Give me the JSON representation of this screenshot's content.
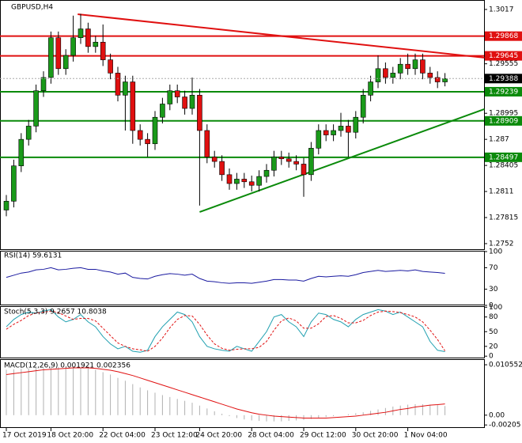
{
  "chart_data": {
    "type": "candlestick",
    "title": "GBPUSD,H4",
    "up_color": "#1a9a1a",
    "down_color": "#e01010",
    "categories": [
      "17 Oct 2019",
      null,
      null,
      null,
      null,
      null,
      "18 Oct 20:00",
      null,
      null,
      null,
      null,
      null,
      null,
      "22 Oct 04:00",
      null,
      null,
      null,
      null,
      null,
      null,
      "23 Oct 12:00",
      null,
      null,
      null,
      null,
      null,
      "24 Oct 20:00",
      null,
      null,
      null,
      null,
      null,
      null,
      "28 Oct 04:00",
      null,
      null,
      null,
      null,
      null,
      null,
      "29 Oct 12:00",
      null,
      null,
      null,
      null,
      null,
      null,
      "30 Oct 20:00",
      null,
      null,
      null,
      null,
      null,
      null,
      "1 Nov 04:00",
      null,
      null,
      null,
      null,
      null
    ],
    "candles": [
      [
        1.279,
        1.2807,
        1.2783,
        1.28
      ],
      [
        1.28,
        1.2847,
        1.2793,
        1.284
      ],
      [
        1.284,
        1.2877,
        1.2833,
        1.287
      ],
      [
        1.287,
        1.2892,
        1.2863,
        1.2885
      ],
      [
        1.2885,
        1.2932,
        1.2878,
        1.2925
      ],
      [
        1.2925,
        1.2947,
        1.2918,
        1.294
      ],
      [
        1.294,
        1.2992,
        1.2933,
        1.2985
      ],
      [
        1.2985,
        1.2992,
        1.2943,
        1.295
      ],
      [
        1.295,
        1.2972,
        1.2943,
        1.2965
      ],
      [
        1.2965,
        1.301,
        1.2958,
        1.2985
      ],
      [
        1.2985,
        1.3012,
        1.2978,
        1.2995
      ],
      [
        1.2995,
        1.3002,
        1.2968,
        1.2975
      ],
      [
        1.2975,
        1.2987,
        1.2968,
        1.298
      ],
      [
        1.298,
        1.3,
        1.2953,
        1.296
      ],
      [
        1.296,
        1.2967,
        1.2938,
        1.2945
      ],
      [
        1.2945,
        1.2952,
        1.2913,
        1.292
      ],
      [
        1.292,
        1.2942,
        1.288,
        1.2935
      ],
      [
        1.2935,
        1.2942,
        1.2865,
        1.288
      ],
      [
        1.288,
        1.2887,
        1.2863,
        1.287
      ],
      [
        1.287,
        1.2877,
        1.285,
        1.2865
      ],
      [
        1.2865,
        1.2902,
        1.2858,
        1.2895
      ],
      [
        1.2895,
        1.2917,
        1.2888,
        1.291
      ],
      [
        1.291,
        1.2932,
        1.2903,
        1.2925
      ],
      [
        1.2925,
        1.2932,
        1.2911,
        1.2918
      ],
      [
        1.2918,
        1.2925,
        1.2898,
        1.2905
      ],
      [
        1.2905,
        1.294,
        1.2898,
        1.292
      ],
      [
        1.292,
        1.2927,
        1.2795,
        1.288
      ],
      [
        1.288,
        1.2887,
        1.2843,
        1.285
      ],
      [
        1.285,
        1.2857,
        1.2838,
        1.2845
      ],
      [
        1.2845,
        1.2852,
        1.2823,
        1.283
      ],
      [
        1.283,
        1.2837,
        1.2813,
        1.282
      ],
      [
        1.282,
        1.2832,
        1.2813,
        1.2825
      ],
      [
        1.2825,
        1.2832,
        1.2815,
        1.2822
      ],
      [
        1.2822,
        1.2829,
        1.2811,
        1.2818
      ],
      [
        1.2818,
        1.2835,
        1.2811,
        1.2828
      ],
      [
        1.2828,
        1.2842,
        1.2821,
        1.2835
      ],
      [
        1.2835,
        1.2857,
        1.2828,
        1.285
      ],
      [
        1.285,
        1.2857,
        1.2841,
        1.2848
      ],
      [
        1.2848,
        1.2855,
        1.2838,
        1.2845
      ],
      [
        1.2845,
        1.2852,
        1.2835,
        1.2842
      ],
      [
        1.2842,
        1.2849,
        1.2805,
        1.283
      ],
      [
        1.283,
        1.2867,
        1.2823,
        1.286
      ],
      [
        1.286,
        1.2887,
        1.2853,
        1.288
      ],
      [
        1.288,
        1.2887,
        1.2868,
        1.2875
      ],
      [
        1.2875,
        1.2887,
        1.2868,
        1.288
      ],
      [
        1.288,
        1.29,
        1.2873,
        1.2885
      ],
      [
        1.2885,
        1.2892,
        1.285,
        1.2878
      ],
      [
        1.2878,
        1.2902,
        1.2871,
        1.2895
      ],
      [
        1.2895,
        1.2927,
        1.2888,
        1.292
      ],
      [
        1.292,
        1.2942,
        1.2913,
        1.2935
      ],
      [
        1.2935,
        1.2965,
        1.2928,
        1.295
      ],
      [
        1.295,
        1.2957,
        1.2933,
        1.294
      ],
      [
        1.294,
        1.2952,
        1.2933,
        1.2945
      ],
      [
        1.2945,
        1.2962,
        1.2938,
        1.2955
      ],
      [
        1.2955,
        1.2967,
        1.2943,
        1.295
      ],
      [
        1.295,
        1.2967,
        1.2943,
        1.296
      ],
      [
        1.296,
        1.2967,
        1.2938,
        1.2945
      ],
      [
        1.2945,
        1.2952,
        1.2933,
        1.294
      ],
      [
        1.294,
        1.2947,
        1.2928,
        1.2935
      ],
      [
        1.2935,
        1.2945,
        1.293,
        1.29388
      ]
    ],
    "ylim": [
      1.27457,
      1.30277
    ],
    "yticks": [
      1.3017,
      1.29555,
      1.28995,
      1.287,
      1.28405,
      1.2811,
      1.27815,
      1.2752
    ],
    "levels": [
      {
        "value": 1.29868,
        "color": "#e01010"
      },
      {
        "value": 1.29645,
        "color": "#e01010"
      },
      {
        "value": 1.29239,
        "color": "#0a8a0a"
      },
      {
        "value": 1.28909,
        "color": "#0a8a0a"
      },
      {
        "value": 1.28497,
        "color": "#0a8a0a"
      }
    ],
    "last_price": 1.29388,
    "trendlines": [
      {
        "color": "#e01010",
        "points": [
          [
            9.6,
            1.30116
          ],
          [
            64.3,
            1.29624
          ]
        ]
      },
      {
        "color": "#0a8a0a",
        "points": [
          [
            26,
            1.27878
          ],
          [
            64.3,
            1.29042
          ]
        ]
      }
    ],
    "rsi": {
      "title": "RSI(14) 59.6131",
      "color": "#1a1aa0",
      "ylim": [
        0,
        100
      ],
      "yticks": [
        100,
        70,
        30,
        0
      ],
      "values": [
        52,
        56,
        60,
        62,
        66,
        67,
        70,
        66,
        67,
        69,
        70,
        67,
        67,
        64,
        62,
        58,
        60,
        52,
        50,
        49,
        54,
        57,
        59,
        58,
        56,
        58,
        50,
        45,
        44,
        42,
        41,
        42,
        42,
        41,
        43,
        45,
        48,
        48,
        47,
        47,
        45,
        50,
        54,
        53,
        54,
        55,
        54,
        57,
        61,
        63,
        65,
        63,
        64,
        65,
        64,
        66,
        63,
        62,
        61,
        59.6131
      ]
    },
    "stoch": {
      "title": "Stoch(5,3,3) 9.2657 10.8038",
      "ylim": [
        -4.5,
        100.5
      ],
      "yticks": [
        100,
        80,
        50,
        20,
        0
      ],
      "main": {
        "color": "#20a0b0",
        "values": [
          60,
          75,
          85,
          90,
          88,
          92,
          95,
          80,
          70,
          75,
          85,
          70,
          60,
          40,
          25,
          15,
          20,
          10,
          8,
          12,
          40,
          60,
          75,
          90,
          85,
          70,
          40,
          20,
          15,
          12,
          10,
          20,
          15,
          10,
          30,
          50,
          80,
          85,
          70,
          60,
          40,
          70,
          88,
          85,
          75,
          70,
          60,
          75,
          85,
          90,
          95,
          92,
          85,
          90,
          80,
          70,
          60,
          30,
          12,
          9.2657
        ]
      },
      "signal": {
        "color": "#e01010",
        "values": [
          55,
          65,
          73,
          83,
          88,
          90,
          92,
          89,
          82,
          75,
          77,
          77,
          72,
          57,
          42,
          27,
          20,
          15,
          13,
          10,
          20,
          37,
          58,
          75,
          83,
          82,
          65,
          43,
          25,
          16,
          12,
          14,
          15,
          15,
          18,
          30,
          53,
          72,
          78,
          72,
          57,
          57,
          66,
          81,
          83,
          77,
          68,
          68,
          73,
          83,
          90,
          92,
          91,
          89,
          85,
          80,
          70,
          53,
          34,
          10.8038
        ]
      }
    },
    "macd": {
      "title": "MACD(12,26,9) 0.001921 0.002356",
      "ylim": [
        -0.00268,
        0.01156
      ],
      "yticks": [
        0.010552,
        {
          "value": 0,
          "label": "0.00"
        },
        -0.00205
      ],
      "hist": {
        "color": "#b0b0b0",
        "values": [
          0.0095,
          0.0096,
          0.0097,
          0.0098,
          0.0099,
          0.01,
          0.0101,
          0.0101,
          0.01,
          0.01,
          0.0099,
          0.0098,
          0.0095,
          0.009,
          0.0085,
          0.0078,
          0.0072,
          0.0065,
          0.0058,
          0.0052,
          0.0047,
          0.0042,
          0.0038,
          0.0034,
          0.003,
          0.0026,
          0.002,
          0.0014,
          0.0008,
          0.0003,
          -0.0002,
          -0.0006,
          -0.0009,
          -0.0011,
          -0.0012,
          -0.0013,
          -0.0013,
          -0.0013,
          -0.0012,
          -0.0011,
          -0.001,
          -0.0008,
          -0.0006,
          -0.0004,
          -0.0002,
          0.0,
          0.0002,
          0.0004,
          0.0006,
          0.0009,
          0.0012,
          0.0015,
          0.0018,
          0.002,
          0.0022,
          0.0023,
          0.0023,
          0.0022,
          0.0021,
          0.001921
        ]
      },
      "signal": {
        "color": "#e01010",
        "values": [
          0.0085,
          0.0087,
          0.0089,
          0.0091,
          0.0093,
          0.0095,
          0.0096,
          0.0097,
          0.0098,
          0.0099,
          0.0099,
          0.0099,
          0.0098,
          0.0096,
          0.0094,
          0.0091,
          0.0087,
          0.0083,
          0.0078,
          0.0073,
          0.0068,
          0.0063,
          0.0058,
          0.0053,
          0.0048,
          0.0043,
          0.0038,
          0.0033,
          0.0028,
          0.0023,
          0.0018,
          0.0013,
          0.0009,
          0.0005,
          0.0002,
          0.0,
          -0.0002,
          -0.0003,
          -0.0004,
          -0.0005,
          -0.0006,
          -0.0006,
          -0.0006,
          -0.0006,
          -0.0005,
          -0.0004,
          -0.0003,
          -0.0002,
          0.0,
          0.0002,
          0.0004,
          0.0006,
          0.0009,
          0.0012,
          0.0014,
          0.0017,
          0.0019,
          0.0021,
          0.0022,
          0.002356
        ]
      }
    }
  }
}
